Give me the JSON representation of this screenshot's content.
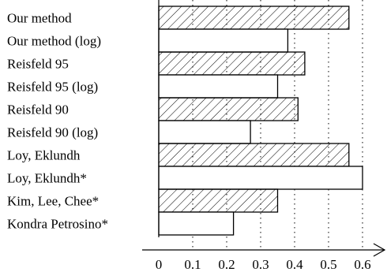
{
  "chart_data": {
    "type": "bar",
    "orientation": "horizontal",
    "title": "",
    "xlabel": "",
    "ylabel": "",
    "categories": [
      "Our method",
      "Our method (log)",
      "Reisfeld 95",
      "Reisfeld 95 (log)",
      "Reisfeld 90",
      "Reisfeld 90 (log)",
      "Loy, Eklundh",
      "Loy, Eklundh*",
      "Kim, Lee, Chee*",
      "Kondra Petrosino*"
    ],
    "values": [
      0.56,
      0.38,
      0.43,
      0.35,
      0.41,
      0.27,
      0.56,
      0.6,
      0.35,
      0.22
    ],
    "patterns": [
      "hatched",
      "plain",
      "hatched",
      "plain",
      "hatched",
      "plain",
      "hatched",
      "plain",
      "hatched",
      "plain"
    ],
    "xticks": [
      "0",
      "0.1",
      "0.2",
      "0.3",
      "0.4",
      "0.5",
      "0.6"
    ],
    "xlim": [
      0,
      0.6
    ],
    "grid": "vertical dotted",
    "colors": {
      "bar_stroke": "#000000",
      "hatch": "#000000",
      "bar_fill": "#ffffff"
    }
  }
}
